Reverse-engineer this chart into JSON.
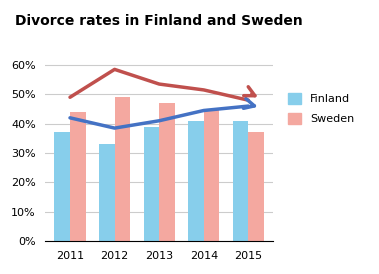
{
  "title": "Divorce rates in Finland and Sweden",
  "years": [
    2011,
    2012,
    2013,
    2014,
    2015
  ],
  "finland_bars": [
    0.37,
    0.33,
    0.39,
    0.41,
    0.41
  ],
  "sweden_bars": [
    0.44,
    0.49,
    0.47,
    0.45,
    0.37
  ],
  "finland_line": [
    0.42,
    0.385,
    0.41,
    0.445,
    0.46
  ],
  "sweden_line": [
    0.49,
    0.585,
    0.535,
    0.515,
    0.48
  ],
  "finland_bar_color": "#87CEEB",
  "sweden_bar_color": "#F4A8A0",
  "finland_line_color": "#4472C4",
  "sweden_line_color": "#C0504D",
  "ylim": [
    0,
    0.7
  ],
  "yticks": [
    0,
    0.1,
    0.2,
    0.3,
    0.4,
    0.5,
    0.6
  ],
  "ytick_labels": [
    "0%",
    "10%",
    "20%",
    "30%",
    "40%",
    "50%",
    "60%"
  ],
  "bar_width": 0.35,
  "background_color": "#ffffff"
}
